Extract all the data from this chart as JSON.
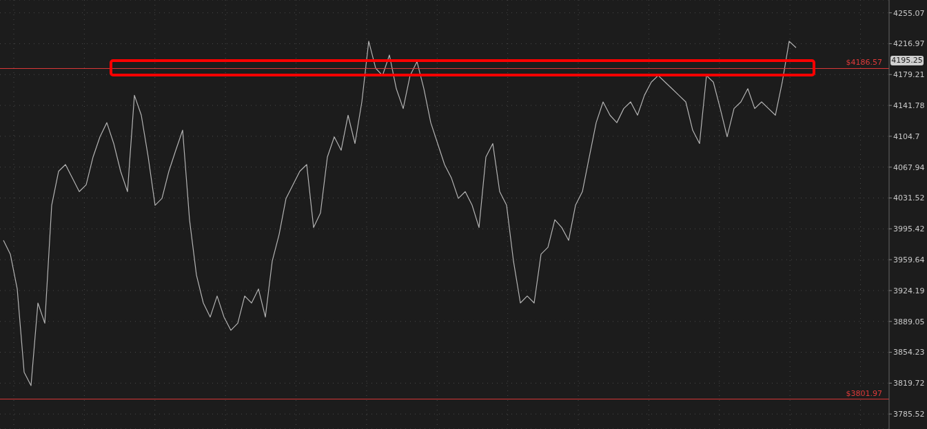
{
  "chart_data": {
    "type": "line",
    "categories": [
      null,
      null,
      null,
      null,
      null,
      null,
      null,
      null,
      null,
      null,
      null,
      null,
      null,
      null,
      null,
      null,
      null,
      null,
      null,
      null,
      null,
      null,
      null,
      null,
      null,
      null,
      null,
      null,
      null,
      null,
      null,
      null,
      null,
      null,
      null,
      null,
      null,
      null,
      null,
      null,
      null,
      null,
      null,
      null,
      null,
      null,
      null,
      null,
      null,
      null,
      null,
      null,
      null,
      null,
      null,
      null,
      null,
      null,
      null,
      null,
      null,
      null,
      null,
      null,
      null,
      null,
      null,
      null,
      null,
      null,
      null,
      null,
      null,
      null,
      null,
      null,
      null,
      null,
      null,
      null,
      null,
      null,
      null,
      null,
      null,
      null,
      null,
      null,
      null,
      null,
      null,
      null,
      null,
      null,
      null,
      null,
      null,
      null,
      null,
      null,
      null,
      null,
      null,
      null,
      null,
      null,
      null,
      null,
      null,
      null,
      null,
      null,
      null,
      null,
      null,
      null,
      null,
      null,
      null,
      null,
      null,
      null,
      null,
      null,
      null,
      null,
      null,
      null,
      null
    ],
    "series": [
      {
        "color": "#b4b4b4",
        "values": [
          3982,
          3966,
          3926,
          3832,
          3817,
          3910,
          3887,
          4023,
          4063,
          4071,
          4055,
          4039,
          4047,
          4080,
          4104,
          4121,
          4096,
          4063,
          4039,
          4154,
          4130,
          4080,
          4023,
          4031,
          4063,
          4088,
          4112,
          4006,
          3942,
          3910,
          3894,
          3918,
          3894,
          3879,
          3887,
          3918,
          3910,
          3926,
          3894,
          3958,
          3989,
          4031,
          4047,
          4063,
          4071,
          3997,
          4014,
          4080,
          4104,
          4088,
          4130,
          4096,
          4146,
          4220,
          4187,
          4178,
          4203,
          4162,
          4138,
          4178,
          4195,
          4162,
          4121,
          4096,
          4071,
          4055,
          4031,
          4039,
          4023,
          3997,
          4080,
          4096,
          4039,
          4023,
          3958,
          3910,
          3918,
          3910,
          3966,
          3974,
          4006,
          3997,
          3982,
          4023,
          4039,
          4080,
          4121,
          4146,
          4130,
          4121,
          4138,
          4146,
          4130,
          4154,
          4170,
          4178,
          4170,
          4162,
          4154,
          4146,
          4112,
          4096,
          4178,
          4170,
          4138,
          4104,
          4138,
          4146,
          4162,
          4138,
          4146,
          4138,
          4130,
          4170,
          4220,
          4212,
          null,
          null,
          null,
          null,
          null,
          null,
          null,
          null,
          null,
          null,
          null,
          null,
          null
        ]
      }
    ],
    "log": true,
    "ylim": [
      3769,
      4271
    ],
    "yticks": [
      3785.52,
      3819.72,
      3854.23,
      3889.05,
      3924.19,
      3959.64,
      3995.42,
      4031.52,
      4067.94,
      4104.7,
      4141.78,
      4179.21,
      4216.97,
      4255.07
    ],
    "ref_lines": [
      {
        "axis": "y",
        "value": 4186.57,
        "label": "$4186.57",
        "color": "#e03a3a"
      },
      {
        "axis": "y",
        "value": 3801.97,
        "label": "$3801.97",
        "color": "#e03a3a"
      }
    ],
    "annotations": [
      "4195.25"
    ],
    "grid": true,
    "legend": false,
    "marker": "none",
    "line_style": "solid",
    "tick_labels": "y"
  }
}
